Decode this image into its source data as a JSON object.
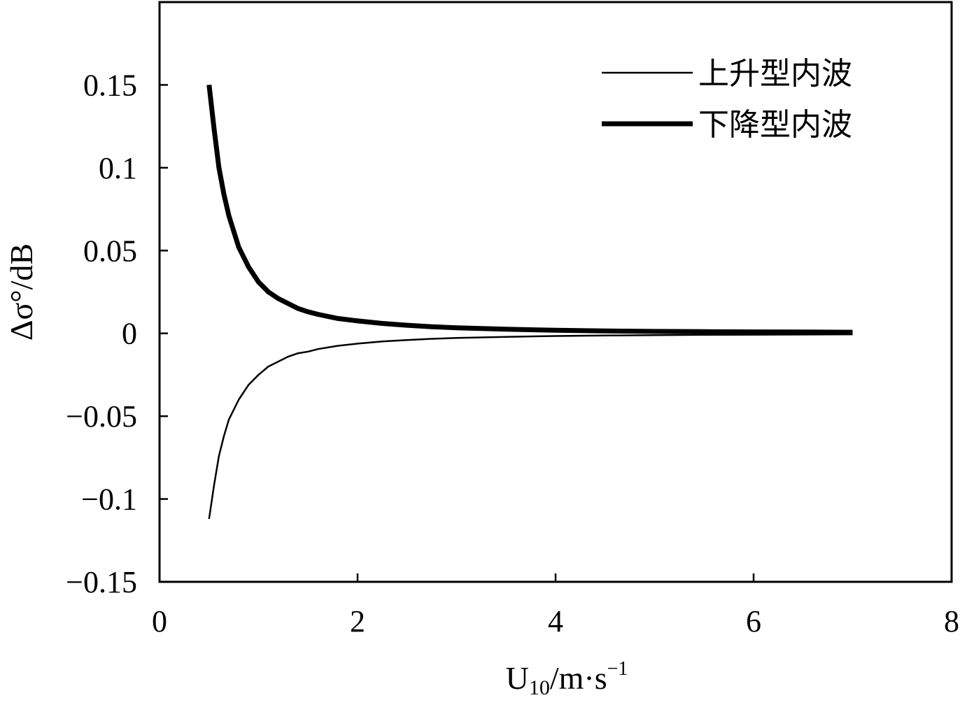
{
  "chart_data": {
    "type": "line",
    "xlabel": "U",
    "xlabel_sub": "10",
    "xlabel_rest": "/m·s",
    "xlabel_sup": "−1",
    "ylabel": "Δσ°/dB",
    "xlim": [
      0,
      8
    ],
    "ylim": [
      -0.15,
      0.2
    ],
    "xticks": [
      0,
      2,
      4,
      6,
      8
    ],
    "xtick_labels": [
      "0",
      "2",
      "4",
      "6",
      "8"
    ],
    "yticks": [
      -0.15,
      -0.1,
      -0.05,
      0,
      0.05,
      0.1,
      0.15
    ],
    "ytick_labels": [
      "−0.15",
      "−0.1",
      "−0.05",
      "0",
      "0.05",
      "0.1",
      "0.15"
    ],
    "grid": false,
    "legend_position": "top-right",
    "series": [
      {
        "name": "上升型内波",
        "line_style": "thin",
        "color": "#000000",
        "x": [
          0.5,
          0.55,
          0.6,
          0.65,
          0.7,
          0.8,
          0.9,
          1.0,
          1.1,
          1.2,
          1.3,
          1.4,
          1.5,
          1.6,
          1.8,
          2.0,
          2.25,
          2.5,
          2.75,
          3.0,
          3.5,
          4.0,
          4.5,
          5.0,
          5.5,
          6.0,
          6.5,
          7.0
        ],
        "y": [
          -0.112,
          -0.092,
          -0.074,
          -0.062,
          -0.052,
          -0.04,
          -0.031,
          -0.025,
          -0.02,
          -0.017,
          -0.014,
          -0.012,
          -0.011,
          -0.0095,
          -0.0075,
          -0.0062,
          -0.0049,
          -0.004,
          -0.0033,
          -0.0028,
          -0.0021,
          -0.0016,
          -0.0013,
          -0.0011,
          -0.0009,
          -0.0008,
          -0.0007,
          -0.0006
        ]
      },
      {
        "name": "下降型内波",
        "line_style": "thick",
        "color": "#000000",
        "x": [
          0.5,
          0.55,
          0.6,
          0.65,
          0.7,
          0.8,
          0.9,
          1.0,
          1.1,
          1.2,
          1.3,
          1.4,
          1.5,
          1.6,
          1.8,
          2.0,
          2.25,
          2.5,
          2.75,
          3.0,
          3.5,
          4.0,
          4.5,
          5.0,
          5.5,
          6.0,
          6.5,
          7.0
        ],
        "y": [
          0.15,
          0.124,
          0.1,
          0.084,
          0.071,
          0.052,
          0.04,
          0.031,
          0.025,
          0.021,
          0.018,
          0.015,
          0.013,
          0.0115,
          0.009,
          0.0075,
          0.006,
          0.0049,
          0.004,
          0.0034,
          0.0025,
          0.0019,
          0.0015,
          0.0012,
          0.001,
          0.0009,
          0.0008,
          0.0007
        ]
      }
    ]
  }
}
